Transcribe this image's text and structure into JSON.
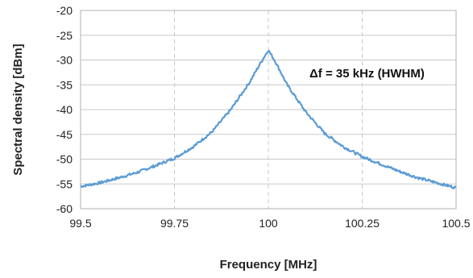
{
  "chart_data": {
    "type": "line",
    "title": "",
    "xlabel": "Frequency [MHz]",
    "ylabel": "Spectral density [dBm]",
    "xlim": [
      99.5,
      100.5
    ],
    "ylim": [
      -60,
      -20
    ],
    "x_ticks": [
      99.5,
      99.75,
      100,
      100.25,
      100.5
    ],
    "x_tick_labels": [
      "99.5",
      "99.75",
      "100",
      "100.25",
      "100.5"
    ],
    "y_ticks": [
      -20,
      -25,
      -30,
      -35,
      -40,
      -45,
      -50,
      -55,
      -60
    ],
    "y_tick_labels": [
      "-20",
      "-25",
      "-30",
      "-35",
      "-40",
      "-45",
      "-50",
      "-55",
      "-60"
    ],
    "grid": {
      "horizontal": "solid",
      "vertical": "dashed"
    },
    "legend": "none",
    "annotation": "Δf = 35 kHz (HWHM)",
    "line_color": "#5b9bd5",
    "series": [
      {
        "x": [
          99.5,
          99.55,
          99.6,
          99.65,
          99.7,
          99.75,
          99.8,
          99.85,
          99.9,
          99.95,
          99.98,
          100.0,
          100.02,
          100.05,
          100.1,
          100.15,
          100.2,
          100.25,
          100.3,
          100.35,
          100.4,
          100.45,
          100.5
        ],
        "y": [
          -55.5,
          -54.8,
          -53.8,
          -52.7,
          -51.3,
          -49.8,
          -47.5,
          -44.5,
          -40.0,
          -34.5,
          -30.5,
          -28.0,
          -30.5,
          -35.0,
          -40.5,
          -44.8,
          -47.5,
          -49.5,
          -51.0,
          -52.5,
          -53.8,
          -54.8,
          -55.8
        ]
      }
    ]
  }
}
